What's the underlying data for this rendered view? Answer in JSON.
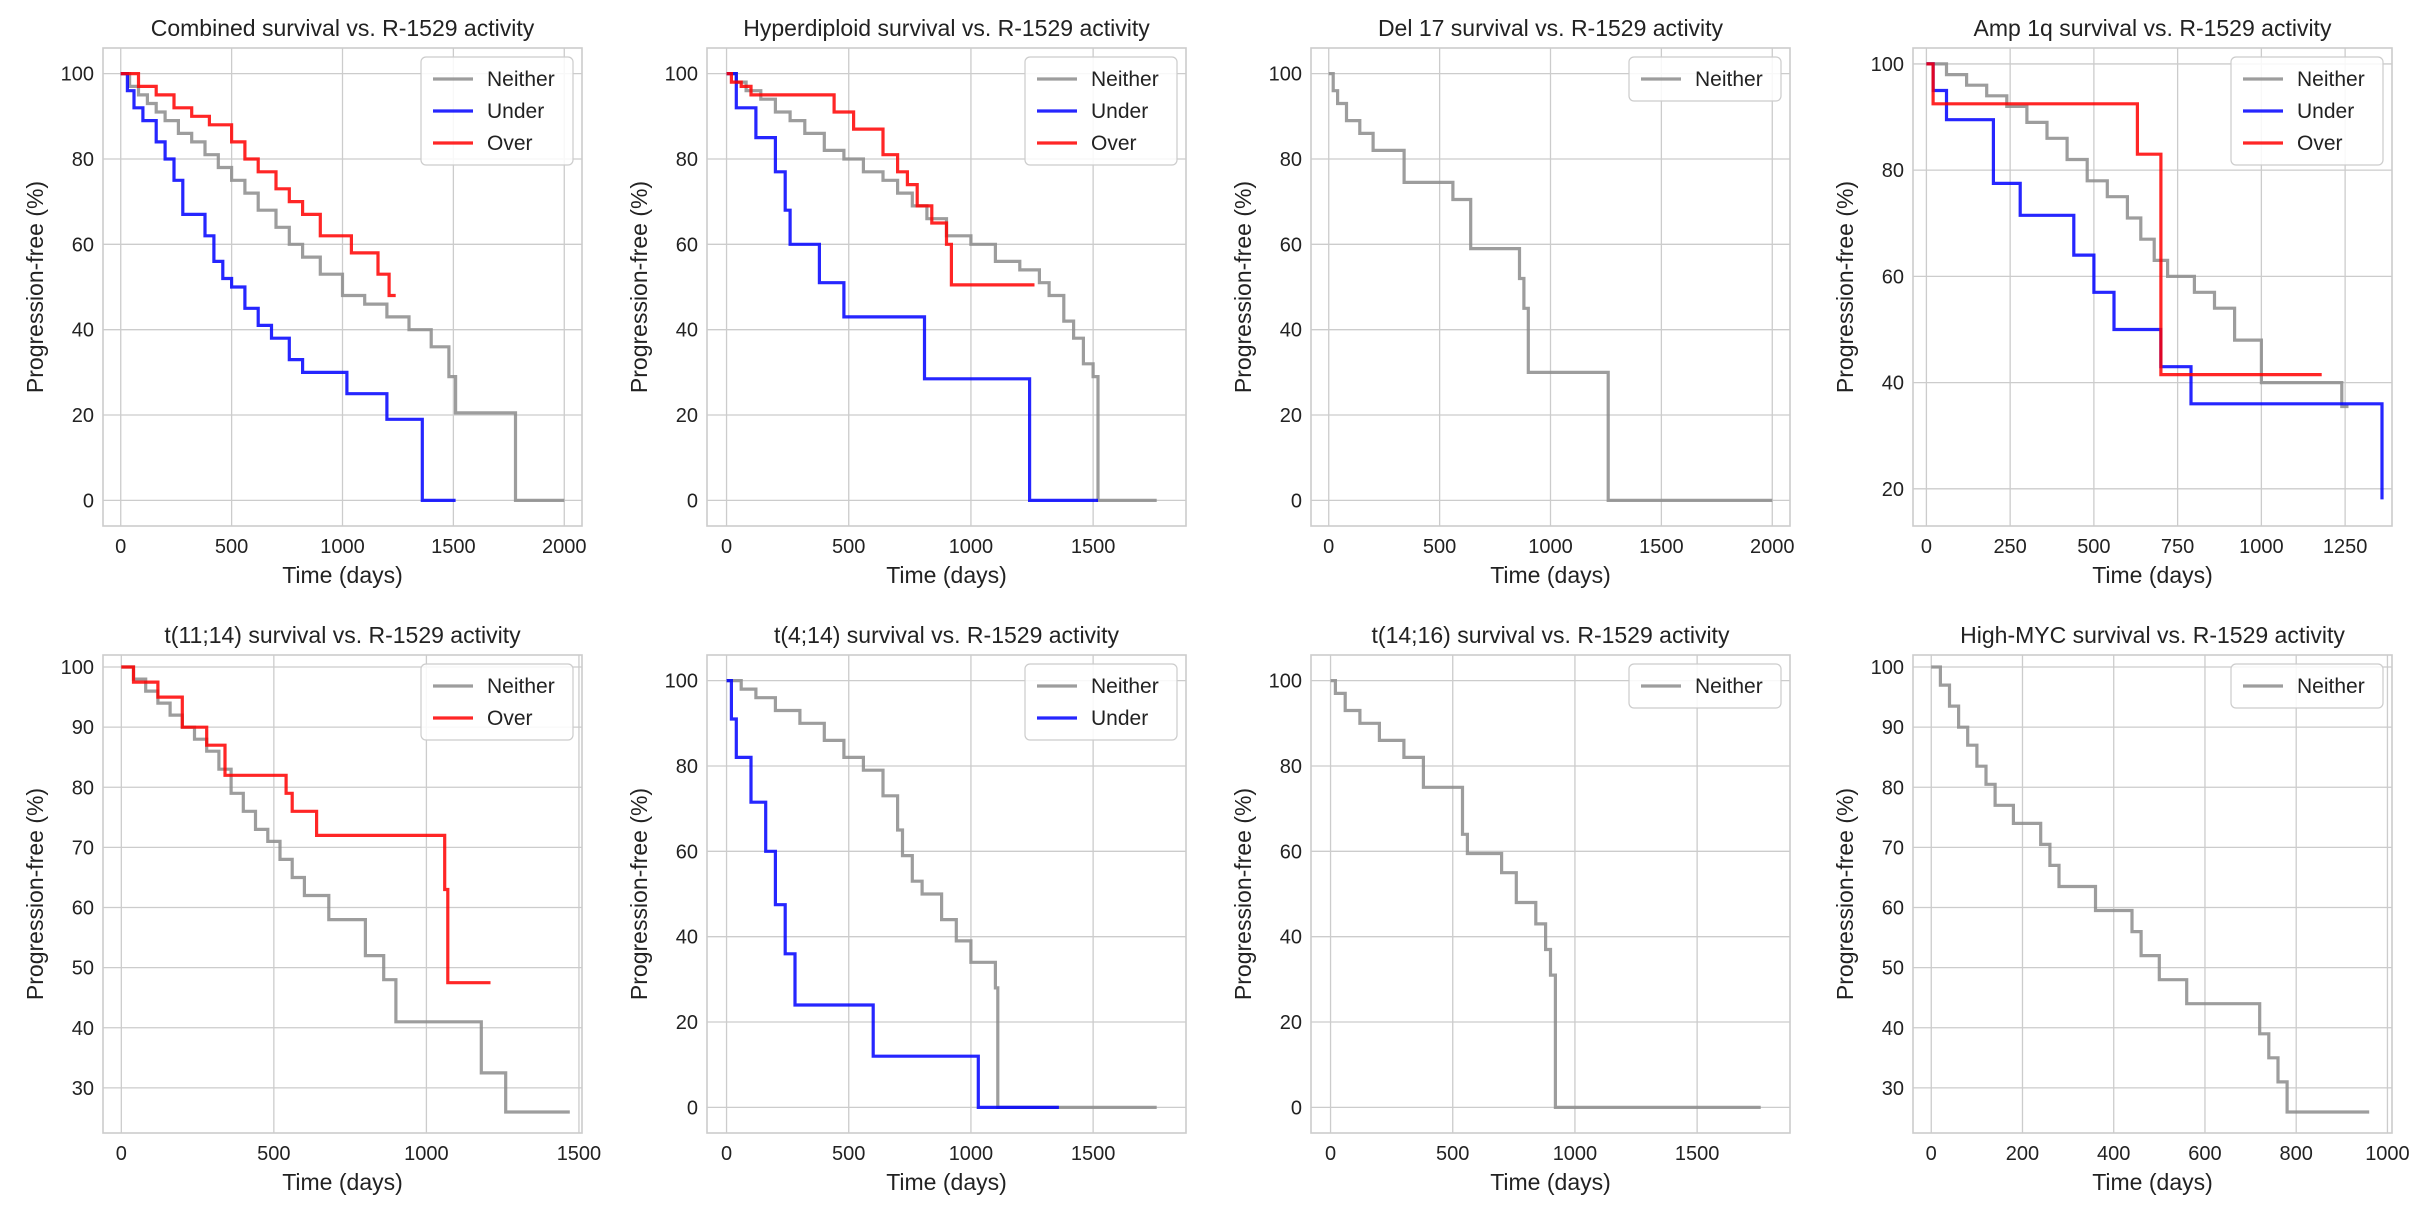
{
  "figure_title": "Kaplan-Meier progression-free survival vs. R-1529 activity",
  "colors": {
    "Neither": "#8c8c8c",
    "Under": "#0000ff",
    "Over": "#ff0000",
    "grid": "#cccccc",
    "frame": "#cccccc"
  },
  "chart_data": [
    {
      "type": "line",
      "title": "Combined survival vs. R-1529 activity",
      "xlabel": "Time (days)",
      "ylabel": "Progression-free (%)",
      "xlim": [
        -80,
        2080
      ],
      "ylim": [
        -6,
        106
      ],
      "xticks": [
        0,
        500,
        1000,
        1500,
        2000
      ],
      "yticks": [
        0,
        20,
        40,
        60,
        80,
        100
      ],
      "legend": "top-right",
      "series": [
        {
          "name": "Neither",
          "x": [
            0,
            40,
            80,
            120,
            160,
            200,
            260,
            320,
            380,
            440,
            500,
            560,
            620,
            700,
            760,
            820,
            900,
            1000,
            1100,
            1200,
            1300,
            1400,
            1480,
            1510,
            1760,
            1780,
            2000
          ],
          "y": [
            100,
            97,
            95,
            93,
            91,
            89,
            86,
            84,
            81,
            78,
            75,
            72,
            68,
            64,
            60,
            57,
            53,
            48,
            46,
            43,
            40,
            36,
            29,
            20.5,
            20.5,
            0,
            0
          ]
        },
        {
          "name": "Under",
          "x": [
            0,
            30,
            60,
            100,
            160,
            200,
            240,
            280,
            380,
            420,
            460,
            500,
            560,
            620,
            680,
            760,
            820,
            1020,
            1200,
            1360,
            1510
          ],
          "y": [
            100,
            96,
            92,
            89,
            84,
            80,
            75,
            67,
            62,
            56,
            52,
            50,
            45,
            41,
            38,
            33,
            30,
            25,
            19,
            0,
            0
          ]
        },
        {
          "name": "Over",
          "x": [
            0,
            80,
            160,
            240,
            320,
            400,
            500,
            560,
            620,
            700,
            760,
            820,
            900,
            1040,
            1160,
            1210,
            1240
          ],
          "y": [
            100,
            97,
            95,
            92,
            90,
            88,
            84,
            80,
            77,
            73,
            70,
            67,
            62,
            58,
            53,
            48,
            48
          ]
        }
      ]
    },
    {
      "type": "line",
      "title": "Hyperdiploid survival vs. R-1529 activity",
      "xlabel": "Time (days)",
      "ylabel": "Progression-free (%)",
      "xlim": [
        -80,
        1880
      ],
      "ylim": [
        -6,
        106
      ],
      "xticks": [
        0,
        500,
        1000,
        1500
      ],
      "yticks": [
        0,
        20,
        40,
        60,
        80,
        100
      ],
      "legend": "top-right",
      "series": [
        {
          "name": "Neither",
          "x": [
            0,
            40,
            80,
            140,
            200,
            260,
            320,
            400,
            480,
            560,
            640,
            700,
            760,
            820,
            900,
            1000,
            1100,
            1200,
            1280,
            1320,
            1380,
            1420,
            1460,
            1500,
            1520,
            1760
          ],
          "y": [
            100,
            98,
            96,
            94,
            91,
            89,
            86,
            82,
            80,
            77,
            75,
            72,
            69,
            66,
            62,
            60,
            56,
            54,
            51,
            48,
            42,
            38,
            32,
            29,
            0,
            0
          ]
        },
        {
          "name": "Under",
          "x": [
            0,
            40,
            120,
            200,
            240,
            260,
            380,
            480,
            810,
            1240,
            1520
          ],
          "y": [
            100,
            92,
            85,
            77,
            68,
            60,
            51,
            43,
            28.5,
            0,
            0
          ]
        },
        {
          "name": "Over",
          "x": [
            0,
            20,
            60,
            100,
            200,
            300,
            440,
            520,
            640,
            700,
            740,
            780,
            840,
            900,
            920,
            1020,
            1260
          ],
          "y": [
            100,
            98,
            97,
            95,
            95,
            95,
            91,
            87,
            81,
            77,
            74,
            69,
            65,
            60,
            50.5,
            50.5,
            50.5
          ]
        }
      ]
    },
    {
      "type": "line",
      "title": "Del 17 survival vs. R-1529 activity",
      "xlabel": "Time (days)",
      "ylabel": "Progression-free (%)",
      "xlim": [
        -80,
        2080
      ],
      "ylim": [
        -6,
        106
      ],
      "xticks": [
        0,
        500,
        1000,
        1500,
        2000
      ],
      "yticks": [
        0,
        20,
        40,
        60,
        80,
        100
      ],
      "legend": "top-right",
      "series": [
        {
          "name": "Neither",
          "x": [
            0,
            20,
            40,
            80,
            140,
            200,
            340,
            560,
            640,
            860,
            880,
            900,
            1260,
            2000
          ],
          "y": [
            100,
            96,
            93,
            89,
            86,
            82,
            74.5,
            70.5,
            59,
            52,
            45,
            30,
            0,
            0
          ]
        }
      ]
    },
    {
      "type": "line",
      "title": "Amp 1q survival vs. R-1529 activity",
      "xlabel": "Time (days)",
      "ylabel": "Progression-free (%)",
      "xlim": [
        -40,
        1390
      ],
      "ylim": [
        13,
        103
      ],
      "xticks": [
        0,
        250,
        500,
        750,
        1000,
        1250
      ],
      "yticks": [
        20,
        40,
        60,
        80,
        100
      ],
      "legend": "top-right",
      "series": [
        {
          "name": "Neither",
          "x": [
            0,
            60,
            120,
            180,
            240,
            300,
            360,
            420,
            480,
            540,
            600,
            640,
            680,
            720,
            800,
            860,
            920,
            1000,
            1240,
            1260
          ],
          "y": [
            100,
            98,
            96,
            94,
            92,
            89,
            86,
            82,
            78,
            75,
            71,
            67,
            63,
            60,
            57,
            54,
            48,
            40,
            35.5,
            35.5
          ]
        },
        {
          "name": "Under",
          "x": [
            0,
            20,
            60,
            160,
            200,
            280,
            440,
            500,
            560,
            700,
            790,
            1360
          ],
          "y": [
            100,
            95,
            89.5,
            89.5,
            77.5,
            71.5,
            64,
            57,
            50,
            43,
            36,
            18
          ]
        },
        {
          "name": "Over",
          "x": [
            0,
            20,
            260,
            630,
            700,
            1180
          ],
          "y": [
            100,
            92.5,
            92.5,
            83,
            41.5,
            41.5
          ]
        }
      ]
    },
    {
      "type": "line",
      "title": "t(11;14) survival vs. R-1529 activity",
      "xlabel": "Time (days)",
      "ylabel": "Progression-free (%)",
      "xlim": [
        -60,
        1510
      ],
      "ylim": [
        22.5,
        102
      ],
      "xticks": [
        0,
        500,
        1000,
        1500
      ],
      "yticks": [
        30,
        40,
        50,
        60,
        70,
        80,
        90,
        100
      ],
      "legend": "top-right",
      "series": [
        {
          "name": "Neither",
          "x": [
            0,
            40,
            80,
            120,
            160,
            200,
            240,
            280,
            320,
            360,
            400,
            440,
            480,
            520,
            560,
            600,
            680,
            800,
            860,
            900,
            1140,
            1180,
            1260,
            1470
          ],
          "y": [
            100,
            98,
            96,
            94,
            92,
            90,
            88,
            86,
            83,
            79,
            76,
            73,
            71,
            68,
            65,
            62,
            58,
            52,
            48,
            41,
            41,
            32.5,
            26,
            26
          ]
        },
        {
          "name": "Over",
          "x": [
            0,
            40,
            80,
            120,
            200,
            280,
            340,
            440,
            540,
            560,
            640,
            1060,
            1070,
            1210
          ],
          "y": [
            100,
            97.5,
            97.5,
            95,
            90,
            87,
            82,
            82,
            79,
            76,
            72,
            63,
            47.5,
            47.5
          ]
        }
      ]
    },
    {
      "type": "line",
      "title": "t(4;14) survival vs. R-1529 activity",
      "xlabel": "Time (days)",
      "ylabel": "Progression-free (%)",
      "xlim": [
        -80,
        1880
      ],
      "ylim": [
        -6,
        106
      ],
      "xticks": [
        0,
        500,
        1000,
        1500
      ],
      "yticks": [
        0,
        20,
        40,
        60,
        80,
        100
      ],
      "legend": "top-right",
      "series": [
        {
          "name": "Neither",
          "x": [
            0,
            60,
            120,
            200,
            300,
            400,
            480,
            560,
            620,
            640,
            700,
            720,
            760,
            800,
            880,
            940,
            1000,
            1100,
            1110,
            1760
          ],
          "y": [
            100,
            98,
            96,
            93,
            90,
            86,
            82,
            79,
            79,
            73,
            65,
            59,
            53,
            50,
            44,
            39,
            34,
            28,
            0,
            0
          ]
        },
        {
          "name": "Under",
          "x": [
            0,
            20,
            40,
            60,
            100,
            160,
            200,
            240,
            280,
            600,
            1030,
            1360
          ],
          "y": [
            100,
            91,
            82,
            82,
            71.5,
            60,
            47.5,
            36,
            24,
            12,
            0,
            0
          ]
        }
      ]
    },
    {
      "type": "line",
      "title": "t(14;16) survival vs. R-1529 activity",
      "xlabel": "Time (days)",
      "ylabel": "Progression-free (%)",
      "xlim": [
        -80,
        1880
      ],
      "ylim": [
        -6,
        106
      ],
      "xticks": [
        0,
        500,
        1000,
        1500
      ],
      "yticks": [
        0,
        20,
        40,
        60,
        80,
        100
      ],
      "legend": "top-right",
      "series": [
        {
          "name": "Neither",
          "x": [
            0,
            20,
            60,
            120,
            200,
            300,
            380,
            500,
            540,
            560,
            600,
            700,
            760,
            840,
            880,
            900,
            920,
            1760
          ],
          "y": [
            100,
            97,
            93,
            90,
            86,
            82,
            75,
            75,
            64,
            59.5,
            59.5,
            55,
            48,
            43,
            37,
            31,
            0,
            0
          ]
        }
      ]
    },
    {
      "type": "line",
      "title": "High-MYC survival vs. R-1529 activity",
      "xlabel": "Time (days)",
      "ylabel": "Progression-free (%)",
      "xlim": [
        -40,
        1010
      ],
      "ylim": [
        22.5,
        102
      ],
      "xticks": [
        0,
        200,
        400,
        600,
        800,
        1000
      ],
      "yticks": [
        30,
        40,
        50,
        60,
        70,
        80,
        90,
        100
      ],
      "legend": "top-right",
      "series": [
        {
          "name": "Neither",
          "x": [
            0,
            20,
            40,
            60,
            80,
            100,
            120,
            140,
            180,
            240,
            260,
            280,
            360,
            440,
            460,
            500,
            560,
            720,
            740,
            760,
            780,
            960
          ],
          "y": [
            100,
            97,
            93.5,
            90,
            87,
            83.5,
            80.5,
            77,
            74,
            70.5,
            67,
            63.5,
            59.5,
            56,
            52,
            48,
            44,
            39,
            35,
            31,
            26,
            26
          ]
        }
      ]
    }
  ]
}
